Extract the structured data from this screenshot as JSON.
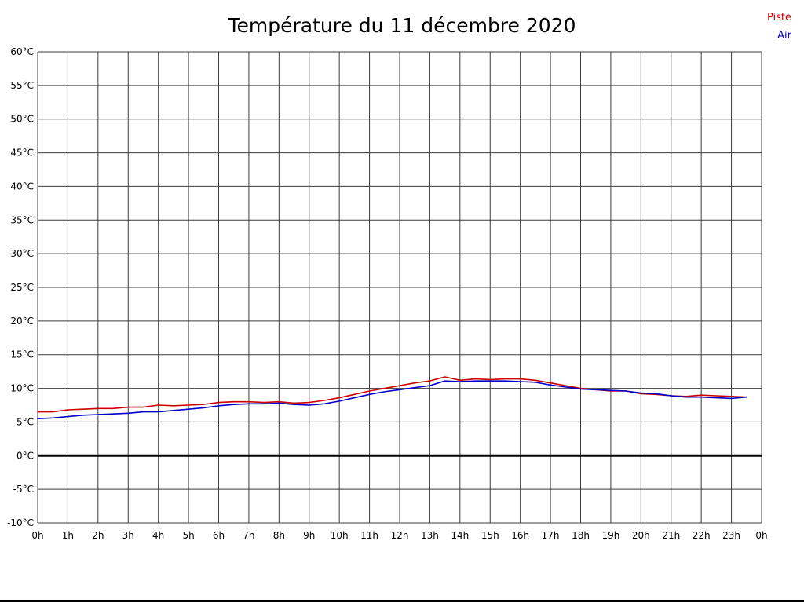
{
  "title": "Température du 11 décembre 2020",
  "legend": [
    {
      "label": "Piste",
      "color": "#cc0000"
    },
    {
      "label": "Air",
      "color": "#0000cc"
    }
  ],
  "colors": {
    "grid": "#3c3c3c",
    "zero_line": "#000000",
    "text": "#000000",
    "background": "#ffffff"
  },
  "chart_data": {
    "type": "line",
    "title": "Température du 11 décembre 2020",
    "xlabel": "",
    "ylabel": "",
    "grid": true,
    "legend_position": "top-right",
    "xlim": [
      0,
      24
    ],
    "ylim": [
      -10,
      60
    ],
    "y_tick_step": 5,
    "x_tick_labels": [
      "0h",
      "1h",
      "2h",
      "3h",
      "4h",
      "5h",
      "6h",
      "7h",
      "8h",
      "9h",
      "10h",
      "11h",
      "12h",
      "13h",
      "14h",
      "15h",
      "16h",
      "17h",
      "18h",
      "19h",
      "20h",
      "21h",
      "22h",
      "23h",
      "0h"
    ],
    "y_tick_labels": [
      "60°C",
      "55°C",
      "50°C",
      "45°C",
      "40°C",
      "35°C",
      "30°C",
      "25°C",
      "20°C",
      "15°C",
      "10°C",
      "5°C",
      "0°C",
      "-5°C",
      "-10°C"
    ],
    "x": [
      0,
      0.5,
      1,
      1.5,
      2,
      2.5,
      3,
      3.5,
      4,
      4.5,
      5,
      5.5,
      6,
      6.5,
      7,
      7.5,
      8,
      8.5,
      9,
      9.5,
      10,
      10.5,
      11,
      11.5,
      12,
      12.5,
      13,
      13.5,
      14,
      14.5,
      15,
      15.5,
      16,
      16.5,
      17,
      17.5,
      18,
      18.5,
      19,
      19.5,
      20,
      20.5,
      21,
      21.5,
      22,
      22.5,
      23,
      23.5
    ],
    "series": [
      {
        "name": "Piste",
        "color": "#cc0000",
        "values": [
          6.5,
          6.5,
          6.8,
          6.9,
          7.0,
          7.0,
          7.2,
          7.2,
          7.5,
          7.4,
          7.5,
          7.6,
          7.9,
          8.0,
          8.0,
          7.9,
          8.0,
          7.8,
          7.9,
          8.2,
          8.6,
          9.1,
          9.6,
          10.0,
          10.4,
          10.8,
          11.1,
          11.7,
          11.2,
          11.4,
          11.3,
          11.4,
          11.4,
          11.2,
          10.8,
          10.4,
          10.0,
          9.8,
          9.6,
          9.6,
          9.2,
          9.1,
          8.9,
          8.8,
          9.0,
          8.9,
          8.8,
          8.7
        ]
      },
      {
        "name": "Air",
        "color": "#0000cc",
        "values": [
          5.5,
          5.6,
          5.8,
          6.0,
          6.1,
          6.2,
          6.3,
          6.5,
          6.5,
          6.7,
          6.9,
          7.1,
          7.4,
          7.6,
          7.7,
          7.7,
          7.8,
          7.6,
          7.5,
          7.7,
          8.1,
          8.6,
          9.1,
          9.5,
          9.8,
          10.1,
          10.4,
          11.1,
          11.0,
          11.1,
          11.1,
          11.1,
          11.0,
          10.9,
          10.5,
          10.2,
          9.9,
          9.8,
          9.7,
          9.6,
          9.3,
          9.2,
          8.9,
          8.7,
          8.7,
          8.6,
          8.5,
          8.7
        ]
      }
    ]
  }
}
